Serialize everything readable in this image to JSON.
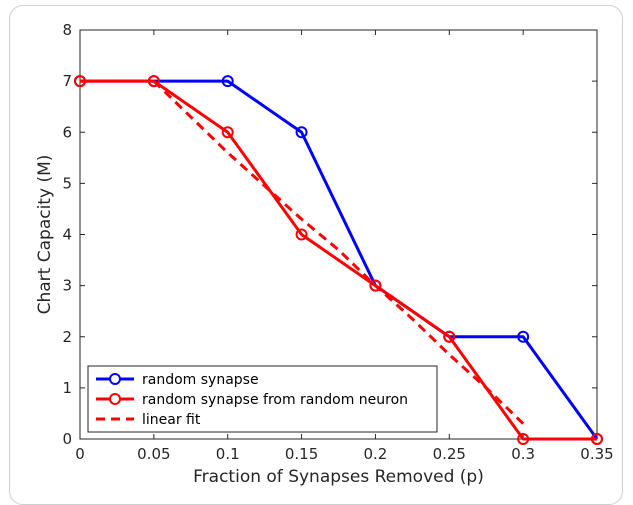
{
  "chart_data": {
    "type": "line",
    "xlabel": "Fraction of Synapses Removed (p)",
    "ylabel": "Chart Capacity (M)",
    "xlim": [
      0,
      0.35
    ],
    "ylim": [
      0,
      8
    ],
    "xticks": [
      0,
      0.05,
      0.1,
      0.15,
      0.2,
      0.25,
      0.3,
      0.35
    ],
    "xtick_labels": [
      "0",
      "0.05",
      "0.1",
      "0.15",
      "0.2",
      "0.25",
      "0.3",
      "0.35"
    ],
    "yticks": [
      0,
      1,
      2,
      3,
      4,
      5,
      6,
      7,
      8
    ],
    "ytick_labels": [
      "0",
      "1",
      "2",
      "3",
      "4",
      "5",
      "6",
      "7",
      "8"
    ],
    "grid": false,
    "legend_position": "bottom-left",
    "series": [
      {
        "name": "random synapse",
        "color": "#0000ff",
        "style": "solid",
        "marker": "circle",
        "x": [
          0,
          0.05,
          0.1,
          0.15,
          0.2,
          0.25,
          0.3,
          0.35
        ],
        "y": [
          7,
          7,
          7,
          6,
          3,
          2,
          2,
          0
        ]
      },
      {
        "name": "random synapse from random neuron",
        "color": "#ff0000",
        "style": "solid",
        "marker": "circle",
        "x": [
          0,
          0.05,
          0.1,
          0.15,
          0.2,
          0.25,
          0.3,
          0.35
        ],
        "y": [
          7,
          7,
          6,
          4,
          3,
          2,
          0,
          0
        ]
      },
      {
        "name": "linear fit",
        "color": "#ff0000",
        "style": "dashed",
        "marker": "none",
        "x": [
          0.05,
          0.075,
          0.1,
          0.125,
          0.15,
          0.175,
          0.2,
          0.225,
          0.25,
          0.275,
          0.3
        ],
        "y": [
          7.0,
          6.3,
          5.6,
          4.95,
          4.3,
          3.7,
          3.0,
          2.35,
          1.65,
          1.0,
          0.3
        ]
      }
    ]
  }
}
